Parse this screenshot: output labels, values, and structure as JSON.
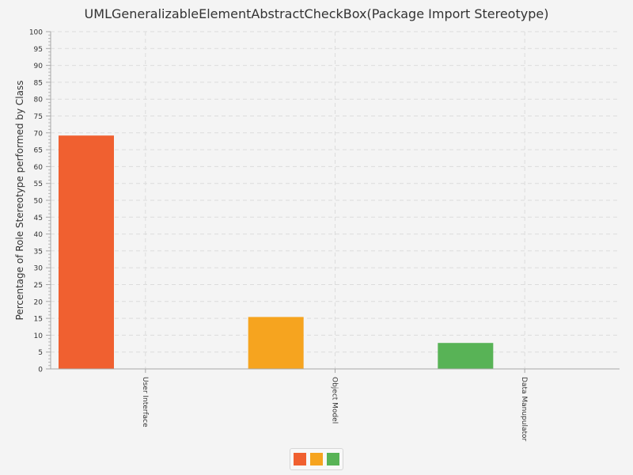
{
  "chart_data": {
    "type": "bar",
    "title": "UMLGeneralizableElementAbstractCheckBox(Package Import Stereotype)",
    "xlabel": "",
    "ylabel": "Percentage of Role Stereotype performed by Class",
    "categories": [
      "User Interface",
      "Object Model",
      "Data Manupulator"
    ],
    "values": [
      69.2,
      15.4,
      7.7
    ],
    "colors": [
      "#f06030",
      "#f6a41f",
      "#58b356"
    ],
    "ylim": [
      0,
      100
    ],
    "yticks": [
      "0",
      "5",
      "10",
      "15",
      "20",
      "25",
      "30",
      "35",
      "40",
      "45",
      "50",
      "55",
      "60",
      "65",
      "70",
      "75",
      "80",
      "85",
      "90",
      "95",
      "100"
    ],
    "grid": true,
    "legend_position": "bottom-center"
  }
}
